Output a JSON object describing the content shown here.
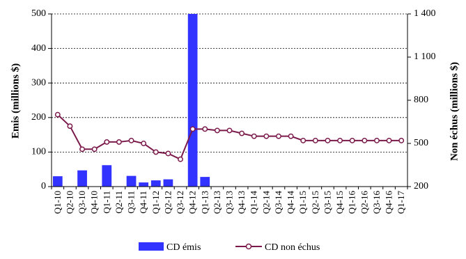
{
  "chart_data": {
    "type": "bar",
    "categories": [
      "Q1-10",
      "Q2-10",
      "Q3-10",
      "Q4-10",
      "Q1-11",
      "Q2-11",
      "Q3-11",
      "Q4-11",
      "Q1-12",
      "Q2-12",
      "Q3-12",
      "Q4-12",
      "Q1-13",
      "Q2-13",
      "Q3-13",
      "Q4-13",
      "Q1-14",
      "Q2-14",
      "Q3-14",
      "Q4-14",
      "Q1-15",
      "Q2-15",
      "Q3-15",
      "Q4-15",
      "Q1-16",
      "Q2-16",
      "Q3-16",
      "Q4-16",
      "Q1-17"
    ],
    "series": [
      {
        "name": "CD émis",
        "chart_type": "bar",
        "axis": "left",
        "color": "#3333ff",
        "values": [
          30,
          0,
          47,
          0,
          62,
          0,
          31,
          12,
          18,
          21,
          0,
          500,
          28,
          0,
          0,
          0,
          0,
          0,
          0,
          0,
          0,
          0,
          0,
          0,
          0,
          0,
          0,
          0,
          0
        ]
      },
      {
        "name": "CD non échus",
        "chart_type": "line",
        "axis": "right",
        "color": "#7b1a4a",
        "values": [
          700,
          620,
          460,
          460,
          510,
          510,
          520,
          500,
          440,
          430,
          390,
          600,
          600,
          590,
          590,
          570,
          550,
          550,
          550,
          550,
          520,
          520,
          520,
          520,
          520,
          520,
          520,
          520,
          520
        ]
      }
    ],
    "ylabel": "Emis  (millions $)",
    "ylabel_right": "Non échus (millions $)",
    "ylim": [
      0,
      500
    ],
    "ylim_right": [
      200,
      1400
    ],
    "yticks": [
      "0",
      "100",
      "200",
      "300",
      "400",
      "500"
    ],
    "yticks_right": [
      "200",
      "500",
      "800",
      "1 100",
      "1 400"
    ],
    "grid": true,
    "legend_position": "bottom"
  }
}
